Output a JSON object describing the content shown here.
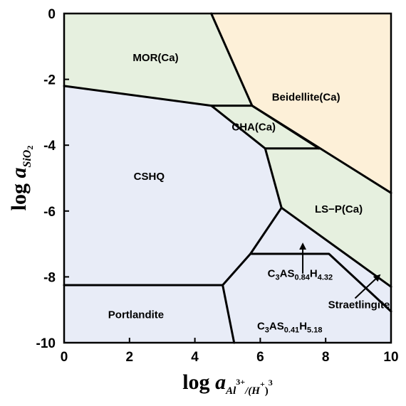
{
  "chart_data": {
    "type": "area",
    "title": "",
    "xlabel": {
      "prefix": "log ",
      "var": "a",
      "sub": "Al",
      "sup1": "3+",
      "mid": "/(H",
      "sup2": "+",
      "end": ")",
      "sup3": "3"
    },
    "ylabel": {
      "prefix": "log ",
      "var": "a",
      "sub": "SiO",
      "subsub": "2"
    },
    "xlim": [
      0,
      10
    ],
    "ylim": [
      -10,
      0
    ],
    "xticks": [
      "0",
      "2",
      "4",
      "6",
      "8",
      "10"
    ],
    "yticks": [
      "0",
      "-2",
      "-4",
      "-6",
      "-8",
      "-10"
    ],
    "colors": {
      "green": "#e6f0df",
      "orange": "#fdf0d8",
      "blue": "#e8ecf7",
      "line": "#000000"
    },
    "regions": [
      {
        "id": "mor",
        "label": "MOR(Ca)",
        "color": "green",
        "polygon": [
          [
            0,
            0
          ],
          [
            4.5,
            0
          ],
          [
            5.75,
            -2.8
          ],
          [
            4.5,
            -2.8
          ],
          [
            0,
            -2.2
          ]
        ],
        "label_pos": [
          2.8,
          -1.45
        ]
      },
      {
        "id": "beidellite",
        "label": "Beidellite(Ca)",
        "color": "orange",
        "polygon": [
          [
            4.5,
            0
          ],
          [
            10,
            0
          ],
          [
            10,
            -5.45
          ],
          [
            5.75,
            -2.8
          ]
        ],
        "label_pos": [
          7.4,
          -2.65
        ]
      },
      {
        "id": "cha",
        "label": "CHA(Ca)",
        "color": "green",
        "polygon": [
          [
            4.5,
            -2.8
          ],
          [
            5.75,
            -2.8
          ],
          [
            7.8,
            -4.1
          ],
          [
            6.15,
            -4.1
          ]
        ],
        "label_pos": [
          5.8,
          -3.55
        ]
      },
      {
        "id": "lsp",
        "label": "LS−P(Ca)",
        "color": "green",
        "polygon": [
          [
            5.75,
            -2.8
          ],
          [
            10,
            -5.45
          ],
          [
            10,
            -8.3
          ],
          [
            6.65,
            -5.9
          ],
          [
            6.15,
            -4.1
          ],
          [
            7.8,
            -4.1
          ]
        ],
        "label_pos": [
          8.4,
          -6.05
        ]
      },
      {
        "id": "cshq",
        "label": "CSHQ",
        "color": "blue",
        "polygon": [
          [
            0,
            -2.2
          ],
          [
            4.5,
            -2.8
          ],
          [
            6.15,
            -4.1
          ],
          [
            6.65,
            -5.9
          ],
          [
            5.7,
            -7.3
          ],
          [
            4.85,
            -8.25
          ],
          [
            0,
            -8.25
          ]
        ],
        "label_pos": [
          2.6,
          -5.05
        ]
      },
      {
        "id": "stratlingite",
        "label": "Straetlingite",
        "color": "blue",
        "polygon": [
          [
            6.65,
            -5.9
          ],
          [
            10,
            -8.3
          ],
          [
            10,
            -9.05
          ],
          [
            8.1,
            -7.3
          ],
          [
            5.7,
            -7.3
          ]
        ],
        "label_pos": null
      },
      {
        "id": "c3as084",
        "label": "C3AS0.84H4.32",
        "color": "blue",
        "polygon": [
          [
            5.7,
            -7.3
          ],
          [
            8.1,
            -7.3
          ],
          [
            10,
            -9.05
          ],
          [
            10,
            -10
          ],
          [
            5.2,
            -10
          ],
          [
            4.85,
            -8.25
          ]
        ],
        "label_pos": null
      },
      {
        "id": "portlandite",
        "label": "Portlandite",
        "color": "blue",
        "polygon": [
          [
            0,
            -8.25
          ],
          [
            4.85,
            -8.25
          ],
          [
            5.2,
            -10
          ],
          [
            0,
            -10
          ]
        ],
        "label_pos": [
          2.2,
          -9.25
        ]
      }
    ],
    "boundaries": [
      [
        [
          0,
          -2.2
        ],
        [
          4.5,
          -2.8
        ],
        [
          5.75,
          -2.8
        ]
      ],
      [
        [
          4.5,
          0
        ],
        [
          5.75,
          -2.8
        ],
        [
          10,
          -5.45
        ]
      ],
      [
        [
          4.5,
          -2.8
        ],
        [
          6.15,
          -4.1
        ],
        [
          7.8,
          -4.1
        ]
      ],
      [
        [
          5.75,
          -2.8
        ],
        [
          7.8,
          -4.1
        ]
      ],
      [
        [
          6.15,
          -4.1
        ],
        [
          6.65,
          -5.9
        ],
        [
          5.7,
          -7.3
        ],
        [
          4.85,
          -8.25
        ],
        [
          0,
          -8.25
        ]
      ],
      [
        [
          4.85,
          -8.25
        ],
        [
          5.2,
          -10
        ]
      ],
      [
        [
          6.65,
          -5.9
        ],
        [
          10,
          -8.3
        ]
      ],
      [
        [
          5.7,
          -7.3
        ],
        [
          8.1,
          -7.3
        ],
        [
          10,
          -9.05
        ]
      ]
    ],
    "annotations": [
      {
        "id": "c3as084",
        "text": [
          [
            "C",
            ""
          ],
          [
            "3",
            "sub"
          ],
          [
            "AS",
            ""
          ],
          [
            "0.84",
            "sub"
          ],
          [
            "H",
            ""
          ],
          [
            "4.32",
            "sub"
          ]
        ],
        "text_pos": [
          7.22,
          -8.0
        ],
        "arrow_from": [
          7.3,
          -7.9
        ],
        "arrow_to": [
          7.3,
          -7.0
        ]
      },
      {
        "id": "stratlingite",
        "text": [
          [
            "Straetlingite",
            ""
          ]
        ],
        "text_pos": [
          9.02,
          -8.95
        ],
        "arrow_from": [
          8.9,
          -8.65
        ],
        "arrow_to": [
          9.65,
          -7.95
        ]
      },
      {
        "id": "c3as041",
        "text": [
          [
            "C",
            ""
          ],
          [
            "3",
            "sub"
          ],
          [
            "AS",
            ""
          ],
          [
            "0.41",
            "sub"
          ],
          [
            "H",
            ""
          ],
          [
            "5.18",
            "sub"
          ]
        ],
        "text_pos": [
          6.9,
          -9.6
        ],
        "arrow_from": null,
        "arrow_to": null
      }
    ]
  }
}
